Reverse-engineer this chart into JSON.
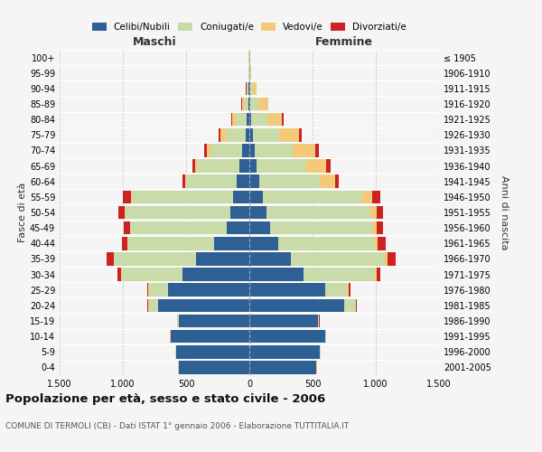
{
  "age_groups": [
    "0-4",
    "5-9",
    "10-14",
    "15-19",
    "20-24",
    "25-29",
    "30-34",
    "35-39",
    "40-44",
    "45-49",
    "50-54",
    "55-59",
    "60-64",
    "65-69",
    "70-74",
    "75-79",
    "80-84",
    "85-89",
    "90-94",
    "95-99",
    "100+"
  ],
  "birth_years": [
    "2001-2005",
    "1996-2000",
    "1991-1995",
    "1986-1990",
    "1981-1985",
    "1976-1980",
    "1971-1975",
    "1966-1970",
    "1961-1965",
    "1956-1960",
    "1951-1955",
    "1946-1950",
    "1941-1945",
    "1936-1940",
    "1931-1935",
    "1926-1930",
    "1921-1925",
    "1916-1920",
    "1911-1915",
    "1906-1910",
    "≤ 1905"
  ],
  "maschi": {
    "celibi": [
      560,
      580,
      620,
      560,
      720,
      640,
      530,
      420,
      280,
      180,
      150,
      130,
      100,
      80,
      55,
      30,
      20,
      8,
      5,
      3,
      2
    ],
    "coniugati": [
      2,
      3,
      5,
      8,
      75,
      155,
      480,
      650,
      680,
      760,
      830,
      800,
      400,
      335,
      255,
      155,
      85,
      35,
      15,
      5,
      2
    ],
    "vedovi": [
      2,
      2,
      2,
      2,
      5,
      5,
      5,
      5,
      5,
      5,
      5,
      8,
      10,
      15,
      25,
      45,
      30,
      15,
      5,
      2,
      0
    ],
    "divorziati": [
      2,
      2,
      2,
      2,
      5,
      10,
      30,
      55,
      45,
      45,
      50,
      60,
      20,
      20,
      20,
      15,
      8,
      5,
      2,
      0,
      0
    ]
  },
  "femmine": {
    "nubili": [
      530,
      560,
      600,
      540,
      750,
      600,
      430,
      330,
      230,
      165,
      135,
      110,
      75,
      60,
      40,
      25,
      15,
      8,
      5,
      3,
      2
    ],
    "coniugate": [
      2,
      3,
      5,
      10,
      90,
      180,
      560,
      740,
      760,
      810,
      820,
      780,
      480,
      390,
      300,
      210,
      125,
      60,
      20,
      5,
      2
    ],
    "vedove": [
      2,
      2,
      2,
      2,
      5,
      8,
      15,
      20,
      25,
      35,
      50,
      80,
      120,
      160,
      180,
      160,
      120,
      80,
      30,
      8,
      2
    ],
    "divorziate": [
      2,
      2,
      2,
      2,
      5,
      10,
      30,
      70,
      60,
      50,
      55,
      65,
      35,
      35,
      30,
      20,
      10,
      5,
      2,
      0,
      0
    ]
  },
  "colors": {
    "celibi": "#2e6095",
    "coniugati": "#c8dba8",
    "vedovi": "#f5c97a",
    "divorziati": "#cc2222"
  },
  "title": "Popolazione per età, sesso e stato civile - 2006",
  "subtitle": "COMUNE DI TERMOLI (CB) - Dati ISTAT 1° gennaio 2006 - Elaborazione TUTTITALIA.IT",
  "xlabel_left": "Maschi",
  "xlabel_right": "Femmine",
  "ylabel_left": "Fasce di età",
  "ylabel_right": "Anni di nascita",
  "xlim": 1500,
  "background_color": "#f5f5f5",
  "grid_color": "#cccccc"
}
